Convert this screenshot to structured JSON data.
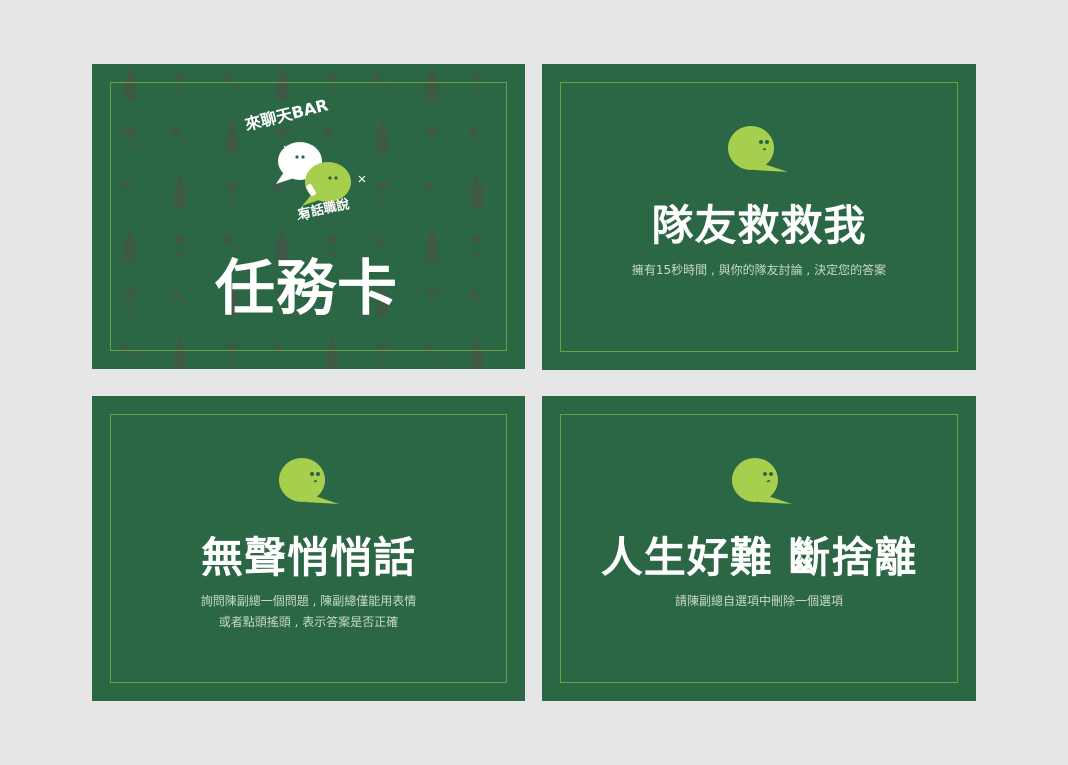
{
  "colors": {
    "background": "#e6e6e6",
    "card": "#2b6645",
    "frame": "#6aa23f",
    "bubble": "#a7cf4e",
    "pattern": "#3e5a46"
  },
  "cover_card": {
    "logo_top": "來聊天BAR",
    "logo_bottom": "有話職說",
    "title": "任務卡",
    "icons": [
      "bottle-icon",
      "cocktail-glass-icon",
      "straw-icon",
      "speech-bubble-icon"
    ]
  },
  "cards": [
    {
      "title": "隊友救救我",
      "desc_lines": [
        "擁有15秒時間 , 與你的隊友討論 , 決定您的答案"
      ]
    },
    {
      "title": "無聲悄悄話",
      "desc_lines": [
        "詢問陳副總一個問題 , 陳副總僅能用表情",
        "或者點頭搖頭 , 表示答案是否正確"
      ]
    },
    {
      "title": "人生好難 斷捨離",
      "desc_lines": [
        "請陳副總自選項中刪除一個選項"
      ]
    }
  ]
}
